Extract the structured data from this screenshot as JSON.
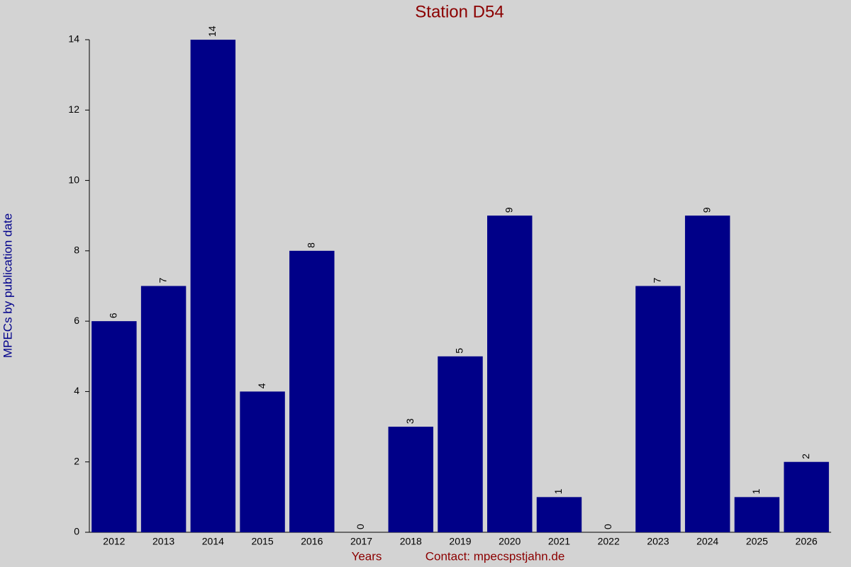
{
  "chart_data": {
    "type": "bar",
    "title": "Station D54",
    "y_label": "MPECs by publication date",
    "x_label": "Years",
    "note": "Contact: mpecspstjahn.de",
    "categories": [
      "2012",
      "2013",
      "2014",
      "2015",
      "2016",
      "2017",
      "2018",
      "2019",
      "2020",
      "2021",
      "2022",
      "2023",
      "2024",
      "2025",
      "2026"
    ],
    "values": [
      6,
      7,
      14,
      4,
      8,
      0,
      3,
      5,
      9,
      1,
      0,
      7,
      9,
      1,
      2
    ],
    "color": "#000088",
    "ylim": [
      0,
      14
    ],
    "yticks": [
      0,
      2,
      4,
      6,
      8,
      10,
      12,
      14
    ]
  }
}
